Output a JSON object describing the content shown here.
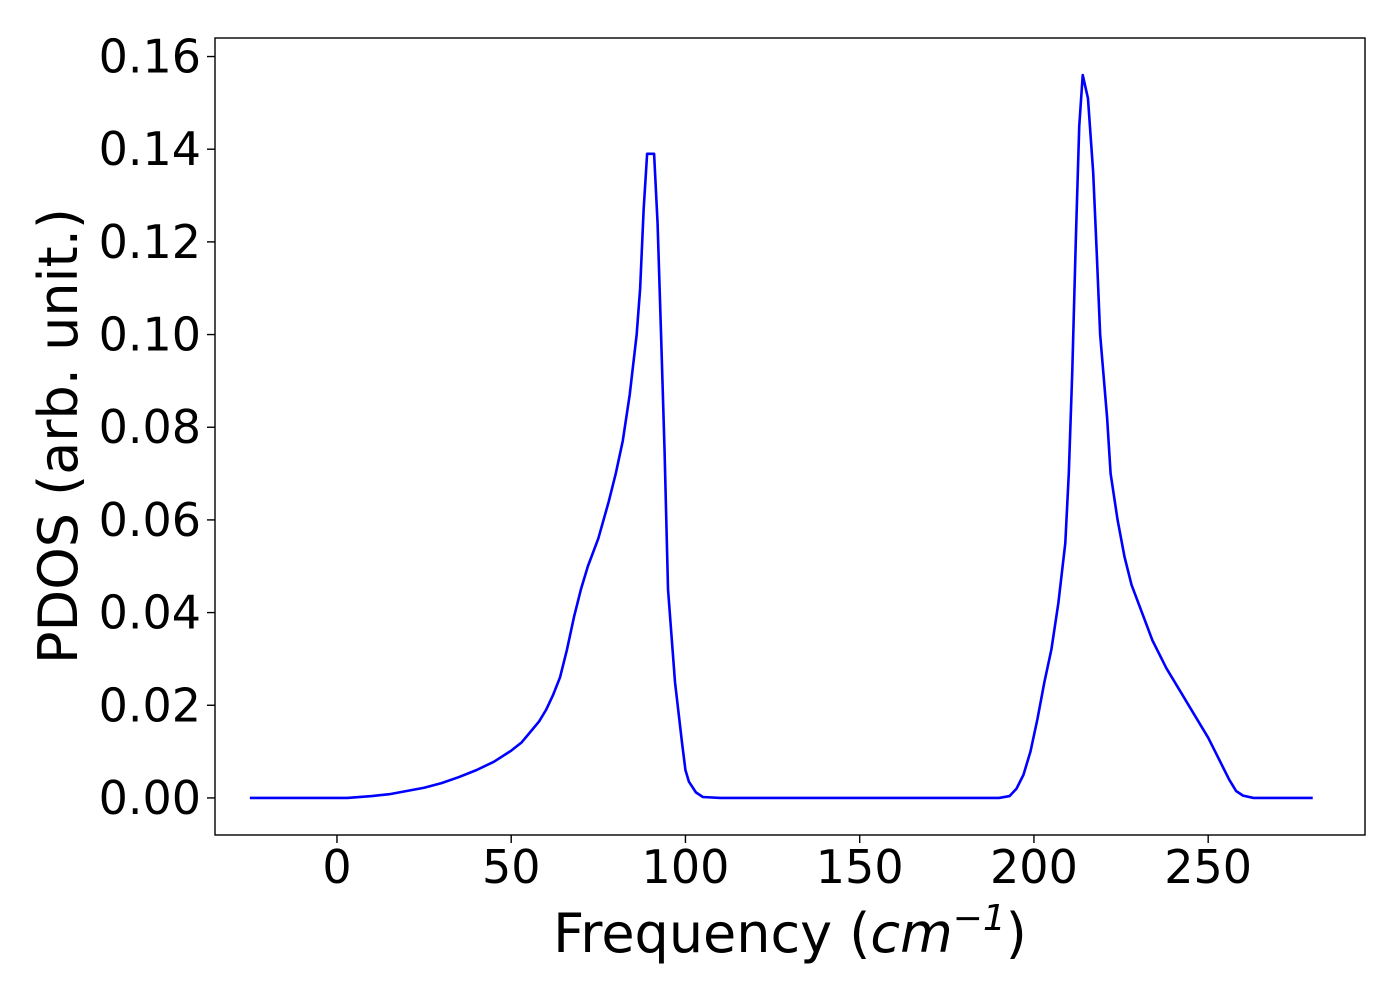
{
  "chart_data": {
    "type": "line",
    "title": "",
    "xlabel": {
      "prefix": "Frequency (",
      "unit_base": "cm",
      "unit_exponent": "−1",
      "suffix": ")"
    },
    "ylabel": "PDOS (arb. unit.)",
    "xlim": [
      -35,
      295
    ],
    "ylim": [
      -0.008,
      0.164
    ],
    "xticks": [
      0,
      50,
      100,
      150,
      200,
      250
    ],
    "xtick_labels": [
      "0",
      "50",
      "100",
      "150",
      "200",
      "250"
    ],
    "yticks": [
      0.0,
      0.02,
      0.04,
      0.06,
      0.08,
      0.1,
      0.12,
      0.14,
      0.16
    ],
    "ytick_labels": [
      "0.00",
      "0.02",
      "0.04",
      "0.06",
      "0.08",
      "0.10",
      "0.12",
      "0.14",
      "0.16"
    ],
    "grid": false,
    "legend": "none",
    "series": [
      {
        "color": "#0000ff",
        "points": [
          [
            -25,
            0.0
          ],
          [
            0,
            0.0
          ],
          [
            3,
            0.0
          ],
          [
            10,
            0.0004
          ],
          [
            15,
            0.0008
          ],
          [
            20,
            0.0015
          ],
          [
            25,
            0.0022
          ],
          [
            30,
            0.0032
          ],
          [
            35,
            0.0045
          ],
          [
            40,
            0.006
          ],
          [
            45,
            0.0078
          ],
          [
            50,
            0.0102
          ],
          [
            53,
            0.012
          ],
          [
            55,
            0.0138
          ],
          [
            58,
            0.0165
          ],
          [
            60,
            0.019
          ],
          [
            62,
            0.0222
          ],
          [
            64,
            0.026
          ],
          [
            66,
            0.032
          ],
          [
            68,
            0.039
          ],
          [
            70,
            0.045
          ],
          [
            72,
            0.05
          ],
          [
            75,
            0.056
          ],
          [
            78,
            0.064
          ],
          [
            80,
            0.07
          ],
          [
            82,
            0.077
          ],
          [
            84,
            0.087
          ],
          [
            86,
            0.1
          ],
          [
            87,
            0.11
          ],
          [
            88,
            0.127
          ],
          [
            89,
            0.139
          ],
          [
            91,
            0.139
          ],
          [
            92,
            0.124
          ],
          [
            93,
            0.1
          ],
          [
            94,
            0.075
          ],
          [
            95,
            0.045
          ],
          [
            97,
            0.025
          ],
          [
            99,
            0.012
          ],
          [
            100,
            0.006
          ],
          [
            101,
            0.0035
          ],
          [
            103,
            0.0012
          ],
          [
            105,
            0.0002
          ],
          [
            110,
            0.0
          ],
          [
            150,
            0.0
          ],
          [
            190,
            0.0
          ],
          [
            193,
            0.0004
          ],
          [
            195,
            0.002
          ],
          [
            197,
            0.005
          ],
          [
            199,
            0.01
          ],
          [
            201,
            0.017
          ],
          [
            203,
            0.025
          ],
          [
            205,
            0.032
          ],
          [
            207,
            0.042
          ],
          [
            209,
            0.055
          ],
          [
            210,
            0.07
          ],
          [
            211,
            0.092
          ],
          [
            212,
            0.12
          ],
          [
            213,
            0.145
          ],
          [
            214,
            0.156
          ],
          [
            215.5,
            0.151
          ],
          [
            217,
            0.135
          ],
          [
            218,
            0.118
          ],
          [
            219,
            0.1
          ],
          [
            221,
            0.082
          ],
          [
            222,
            0.07
          ],
          [
            224,
            0.06
          ],
          [
            226,
            0.052
          ],
          [
            228,
            0.046
          ],
          [
            231,
            0.04
          ],
          [
            234,
            0.034
          ],
          [
            238,
            0.028
          ],
          [
            242,
            0.023
          ],
          [
            246,
            0.018
          ],
          [
            250,
            0.013
          ],
          [
            252,
            0.01
          ],
          [
            254,
            0.007
          ],
          [
            256,
            0.004
          ],
          [
            258,
            0.0015
          ],
          [
            260,
            0.0005
          ],
          [
            263,
            0.0
          ],
          [
            280,
            0.0
          ]
        ]
      }
    ]
  }
}
